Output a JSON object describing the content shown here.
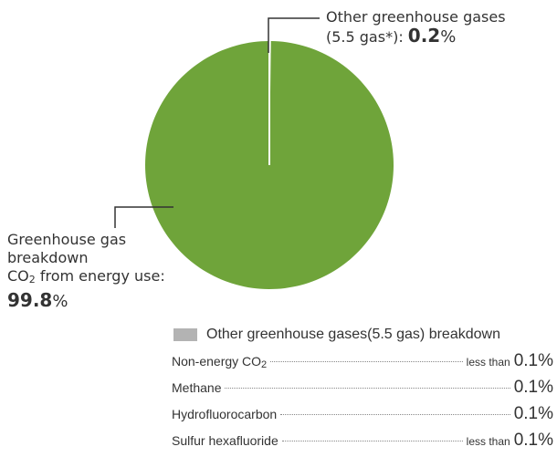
{
  "chart_data": {
    "type": "pie",
    "title": "",
    "colors": {
      "co2": "#6fa43a",
      "other": "#c8c8c8",
      "leader": "#333333"
    },
    "slices": [
      {
        "key": "co2",
        "value": 99.8
      },
      {
        "key": "other",
        "value": 0.2
      }
    ],
    "callouts": {
      "other": {
        "line1": "Other greenhouse gases",
        "line2": "(5.5 gas*): ",
        "value": "0.2",
        "unit": "%"
      },
      "co2": {
        "line1": "Greenhouse gas",
        "line2": "breakdown",
        "line3a": "CO",
        "line3sub": "2",
        "line3b": " from energy use:",
        "value": "99.8",
        "unit": "%"
      }
    },
    "breakdown": {
      "title": "Other greenhouse gases(5.5 gas) breakdown",
      "swatch_color": "#b3b3b3",
      "rows": [
        {
          "name": "Non-energy CO",
          "sub": "2",
          "prefix": "less than",
          "value": "0.1%"
        },
        {
          "name": "Methane",
          "sub": "",
          "prefix": "",
          "value": "0.1%"
        },
        {
          "name": "Hydrofluorocarbon",
          "sub": "",
          "prefix": "",
          "value": "0.1%"
        },
        {
          "name": "Sulfur hexafluoride",
          "sub": "",
          "prefix": "less than",
          "value": "0.1%"
        }
      ]
    }
  }
}
